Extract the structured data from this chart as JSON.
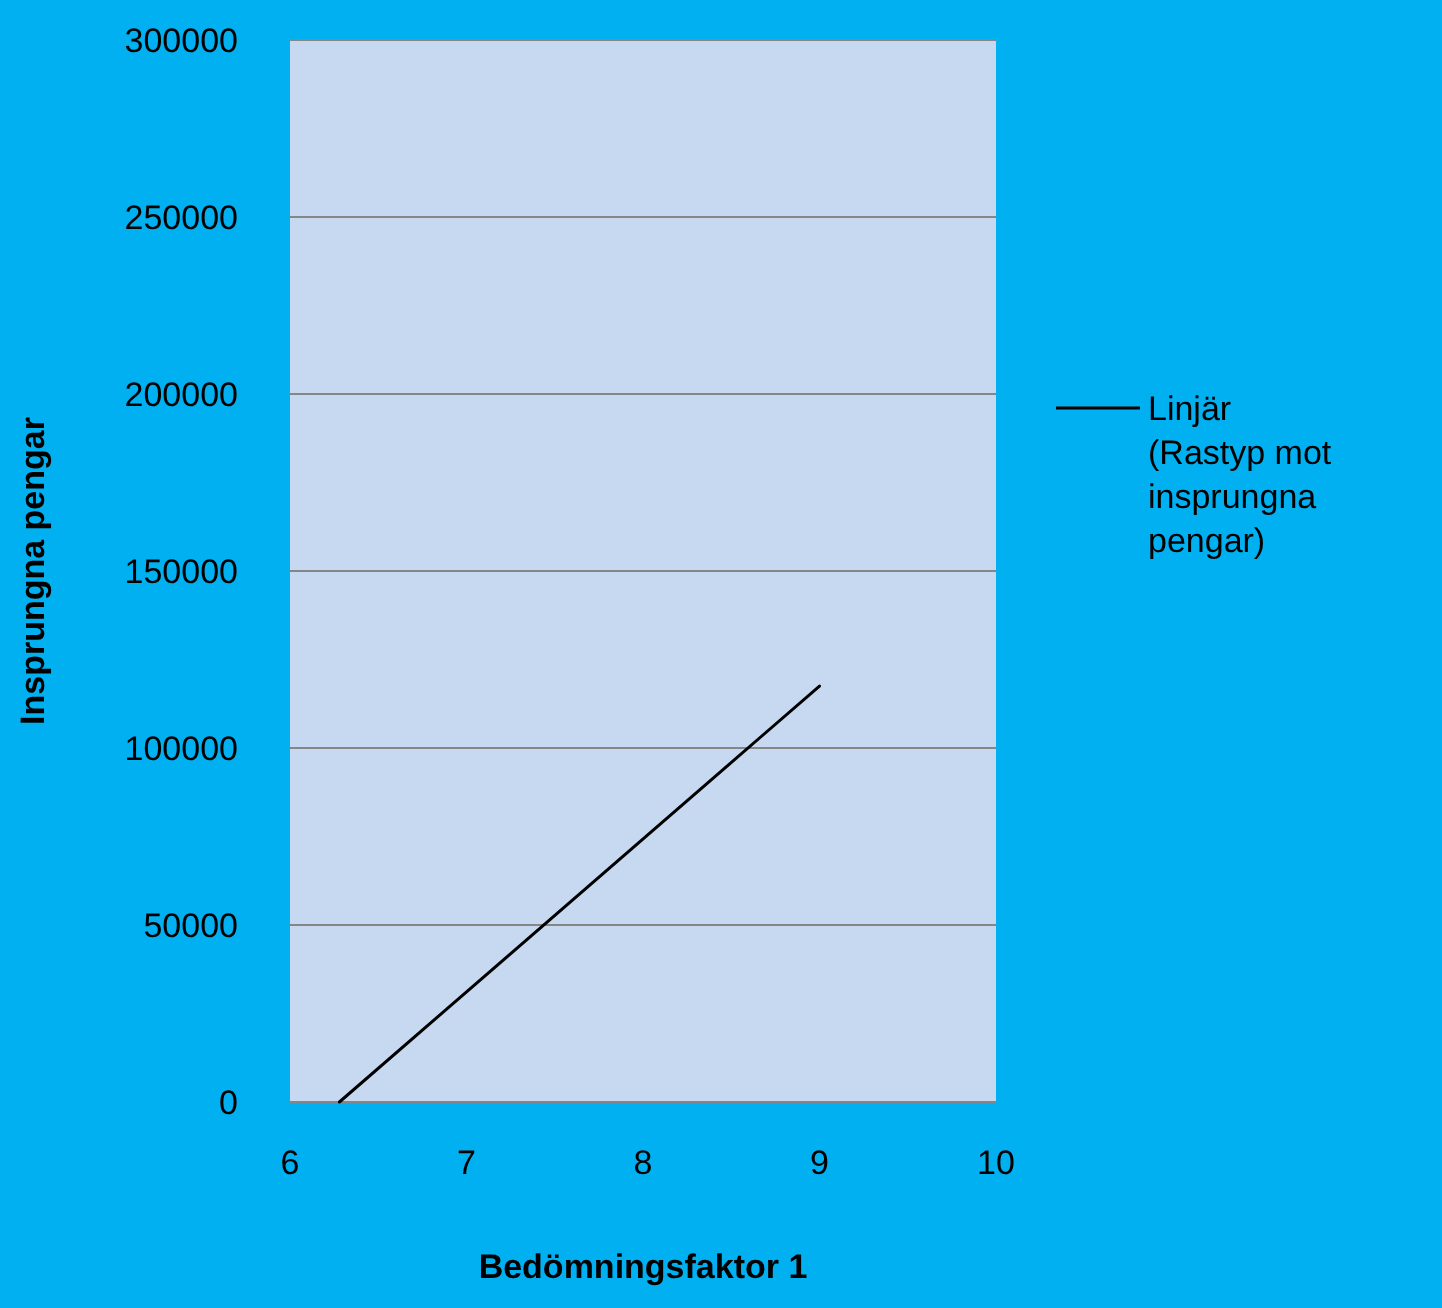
{
  "chart_data": {
    "type": "line",
    "xlabel": "Bedömningsfaktor 1",
    "ylabel": "Insprungna pengar",
    "series": [
      {
        "name": "Linjär (Rastyp mot insprungna pengar)",
        "color": "#000000",
        "x": [
          6.28,
          9
        ],
        "values": [
          0,
          117500
        ]
      }
    ],
    "xlim": [
      6,
      10
    ],
    "xticks": [
      6,
      7,
      8,
      9,
      10
    ],
    "ylim": [
      0,
      300000
    ],
    "yticks": [
      0,
      50000,
      100000,
      150000,
      200000,
      250000,
      300000
    ],
    "grid": "y",
    "legend": "right",
    "marker": "none",
    "line_style": "solid"
  }
}
